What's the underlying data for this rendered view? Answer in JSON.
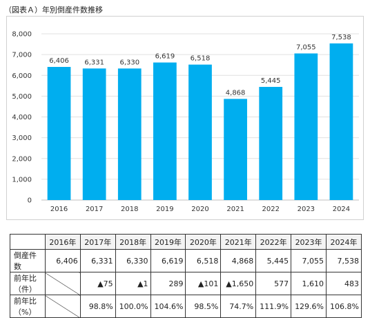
{
  "title": "（図表Ａ）年別倒産件数推移",
  "chart_data": {
    "type": "bar",
    "categories": [
      "2016",
      "2017",
      "2018",
      "2019",
      "2020",
      "2021",
      "2022",
      "2023",
      "2024"
    ],
    "values": [
      6406,
      6331,
      6330,
      6619,
      6518,
      4868,
      5445,
      7055,
      7538
    ],
    "data_labels": [
      "6,406",
      "6,331",
      "6,330",
      "6,619",
      "6,518",
      "4,868",
      "5,445",
      "7,055",
      "7,538"
    ],
    "yticks": [
      "0",
      "1,000",
      "2,000",
      "3,000",
      "4,000",
      "5,000",
      "6,000",
      "7,000",
      "8,000"
    ],
    "ylim": [
      0,
      8000
    ],
    "bar_color": "#00aeef",
    "grid": true,
    "legend": "none"
  },
  "table": {
    "headers": [
      "2016年",
      "2017年",
      "2018年",
      "2019年",
      "2020年",
      "2021年",
      "2022年",
      "2023年",
      "2024年"
    ],
    "rows": [
      {
        "label": "倒産件数",
        "cells": [
          "6,406",
          "6,331",
          "6,330",
          "6,619",
          "6,518",
          "4,868",
          "5,445",
          "7,055",
          "7,538"
        ]
      },
      {
        "label": "前年比（件）",
        "cells": [
          "",
          "▲75",
          "▲1",
          "289",
          "▲101",
          "▲1,650",
          "577",
          "1,610",
          "483"
        ]
      },
      {
        "label": "前年比（%）",
        "cells": [
          "",
          "98.8%",
          "100.0%",
          "104.6%",
          "98.5%",
          "74.7%",
          "111.9%",
          "129.6%",
          "106.8%"
        ]
      }
    ]
  }
}
